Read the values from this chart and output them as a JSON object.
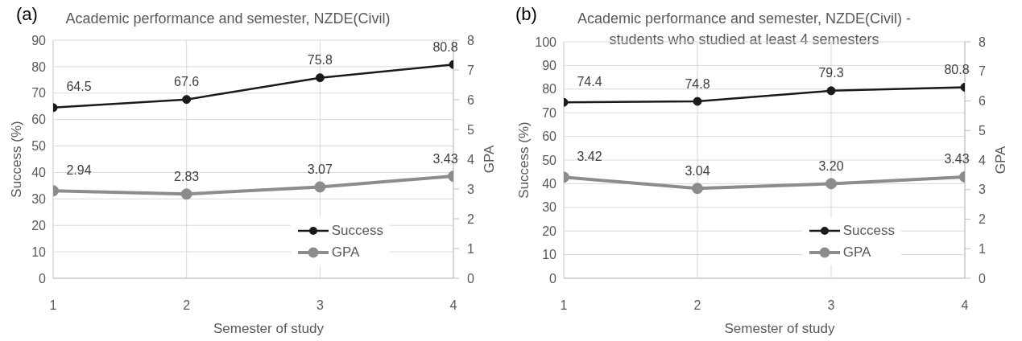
{
  "chart_data": [
    {
      "type": "line",
      "title": "Academic performance and semester, NZDE(Civil)",
      "annotations": [
        "(a)"
      ],
      "xlabel": "Semester of study",
      "ylabel": "Success (%)",
      "y2label": "GPA",
      "x": [
        1,
        2,
        3,
        4
      ],
      "xlim": [
        1,
        4
      ],
      "xticks": [
        1,
        2,
        3,
        4
      ],
      "ylim": [
        0,
        90
      ],
      "yticks": [
        0,
        10,
        20,
        30,
        40,
        50,
        60,
        70,
        80,
        90
      ],
      "y2lim": [
        0,
        8
      ],
      "y2ticks": [
        0,
        1,
        2,
        3,
        4,
        5,
        6,
        7,
        8
      ],
      "grid": true,
      "legend": "bottom right",
      "marker": "circle",
      "line_style": "solid",
      "series": [
        {
          "name": "Success",
          "color": "#1a1a1a",
          "values": [
            64.5,
            67.6,
            75.8,
            80.8
          ],
          "value_labels": [
            "64.5",
            "67.6",
            "75.8",
            "80.8"
          ]
        },
        {
          "name": "GPA",
          "color": "#8c8c8c",
          "axis": "y2",
          "values": [
            2.94,
            2.83,
            3.07,
            3.43
          ],
          "value_labels": [
            "2.94",
            "2.83",
            "3.07",
            "3.43"
          ]
        }
      ]
    },
    {
      "type": "line",
      "title": "Academic performance and semester, NZDE(Civil) - students who studied at least 4 semesters",
      "annotations": [
        "(b)"
      ],
      "xlabel": "Semester of study",
      "ylabel": "Success (%)",
      "y2label": "GPA",
      "x": [
        1,
        2,
        3,
        4
      ],
      "xlim": [
        1,
        4
      ],
      "xticks": [
        1,
        2,
        3,
        4
      ],
      "ylim": [
        0,
        100
      ],
      "yticks": [
        0,
        10,
        20,
        30,
        40,
        50,
        60,
        70,
        80,
        90,
        100
      ],
      "y2lim": [
        0,
        8
      ],
      "y2ticks": [
        0,
        1,
        2,
        3,
        4,
        5,
        6,
        7,
        8
      ],
      "grid": true,
      "legend": "bottom right",
      "marker": "circle",
      "line_style": "solid",
      "series": [
        {
          "name": "Success",
          "color": "#1a1a1a",
          "values": [
            74.4,
            74.8,
            79.3,
            80.8
          ],
          "value_labels": [
            "74.4",
            "74.8",
            "79.3",
            "80.8"
          ]
        },
        {
          "name": "GPA",
          "color": "#8c8c8c",
          "axis": "y2",
          "values": [
            3.42,
            3.04,
            3.2,
            3.43
          ],
          "value_labels": [
            "3.42",
            "3.04",
            "3.20",
            "3.43"
          ]
        }
      ]
    }
  ]
}
